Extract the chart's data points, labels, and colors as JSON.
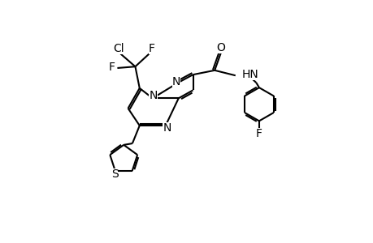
{
  "background_color": "#ffffff",
  "line_color": "#000000",
  "line_width": 1.5,
  "font_size": 10,
  "fig_width": 4.6,
  "fig_height": 3.0,
  "dpi": 100,
  "xlim": [
    0,
    10
  ],
  "ylim": [
    0,
    6.5
  ]
}
